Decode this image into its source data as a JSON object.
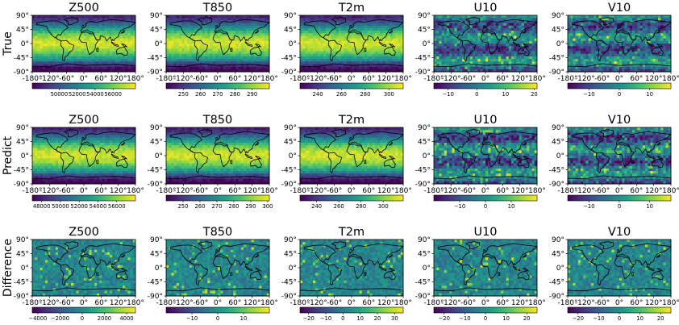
{
  "colormap": [
    "#440154",
    "#46327e",
    "#365c8d",
    "#277f8e",
    "#1fa187",
    "#4ac16d",
    "#a0da39",
    "#fde725"
  ],
  "coast_color": "#000000",
  "chart_data": {
    "type": "heatmap",
    "rows": [
      "True",
      "Predict",
      "Difference"
    ],
    "columns": [
      "Z500",
      "T850",
      "T2m",
      "U10",
      "V10"
    ],
    "lat_ticks": [
      "90°",
      "45°",
      "0°",
      "-45°",
      "-90°"
    ],
    "lon_ticks": [
      "-180°",
      "-120°",
      "-60°",
      "0°",
      "60°",
      "120°",
      "180°"
    ],
    "xlim": [
      -180,
      180
    ],
    "ylim": [
      -90,
      90
    ],
    "panels": [
      {
        "row": "True",
        "variable": "Z500",
        "range": [
          47000,
          58500
        ],
        "colorbar_ticks": [
          {
            "value": 50000,
            "label": "50000"
          },
          {
            "value": 52000,
            "label": "52000"
          },
          {
            "value": 54000,
            "label": "54000"
          },
          {
            "value": 56000,
            "label": "56000"
          }
        ]
      },
      {
        "row": "True",
        "variable": "T850",
        "range": [
          240,
          300
        ],
        "colorbar_ticks": [
          {
            "value": 250,
            "label": "250"
          },
          {
            "value": 260,
            "label": "260"
          },
          {
            "value": 270,
            "label": "270"
          },
          {
            "value": 280,
            "label": "280"
          },
          {
            "value": 290,
            "label": "290"
          }
        ]
      },
      {
        "row": "True",
        "variable": "T2m",
        "range": [
          225,
          312
        ],
        "colorbar_ticks": [
          {
            "value": 240,
            "label": "240"
          },
          {
            "value": 260,
            "label": "260"
          },
          {
            "value": 280,
            "label": "280"
          },
          {
            "value": 300,
            "label": "300"
          }
        ]
      },
      {
        "row": "True",
        "variable": "U10",
        "range": [
          -15,
          21
        ],
        "colorbar_ticks": [
          {
            "value": -10,
            "label": "−10"
          },
          {
            "value": 0,
            "label": "0"
          },
          {
            "value": 10,
            "label": "10"
          },
          {
            "value": 20,
            "label": "20"
          }
        ]
      },
      {
        "row": "True",
        "variable": "V10",
        "range": [
          -17,
          17
        ],
        "colorbar_ticks": [
          {
            "value": -10,
            "label": "−10"
          },
          {
            "value": 0,
            "label": "0"
          },
          {
            "value": 10,
            "label": "10"
          }
        ]
      },
      {
        "row": "Predict",
        "variable": "Z500",
        "range": [
          47000,
          58000
        ],
        "colorbar_ticks": [
          {
            "value": 48000,
            "label": "48000"
          },
          {
            "value": 50000,
            "label": "50000"
          },
          {
            "value": 52000,
            "label": "52000"
          },
          {
            "value": 54000,
            "label": "54000"
          },
          {
            "value": 56000,
            "label": "56000"
          }
        ]
      },
      {
        "row": "Predict",
        "variable": "T850",
        "range": [
          240,
          301
        ],
        "colorbar_ticks": [
          {
            "value": 250,
            "label": "250"
          },
          {
            "value": 260,
            "label": "260"
          },
          {
            "value": 270,
            "label": "270"
          },
          {
            "value": 280,
            "label": "280"
          },
          {
            "value": 290,
            "label": "290"
          },
          {
            "value": 300,
            "label": "300"
          }
        ]
      },
      {
        "row": "Predict",
        "variable": "T2m",
        "range": [
          225,
          318
        ],
        "colorbar_ticks": [
          {
            "value": 240,
            "label": "240"
          },
          {
            "value": 260,
            "label": "260"
          },
          {
            "value": 280,
            "label": "280"
          },
          {
            "value": 300,
            "label": "300"
          }
        ]
      },
      {
        "row": "Predict",
        "variable": "U10",
        "range": [
          -20,
          20
        ],
        "colorbar_ticks": [
          {
            "value": -10,
            "label": "−10"
          },
          {
            "value": 0,
            "label": "0"
          },
          {
            "value": 10,
            "label": "10"
          }
        ]
      },
      {
        "row": "Predict",
        "variable": "V10",
        "range": [
          -17,
          17
        ],
        "colorbar_ticks": [
          {
            "value": -10,
            "label": "−10"
          },
          {
            "value": 0,
            "label": "0"
          },
          {
            "value": 10,
            "label": "10"
          }
        ]
      },
      {
        "row": "Difference",
        "variable": "Z500",
        "range": [
          -4500,
          4800
        ],
        "colorbar_ticks": [
          {
            "value": -4000,
            "label": "−4000"
          },
          {
            "value": -2000,
            "label": "−2000"
          },
          {
            "value": 0,
            "label": "0"
          },
          {
            "value": 2000,
            "label": "2000"
          },
          {
            "value": 4000,
            "label": "4000"
          }
        ]
      },
      {
        "row": "Difference",
        "variable": "T850",
        "range": [
          -20,
          20
        ],
        "colorbar_ticks": [
          {
            "value": -10,
            "label": "−10"
          },
          {
            "value": 0,
            "label": "0"
          },
          {
            "value": 10,
            "label": "10"
          }
        ]
      },
      {
        "row": "Difference",
        "variable": "T2m",
        "range": [
          -25,
          35
        ],
        "colorbar_ticks": [
          {
            "value": -20,
            "label": "−20"
          },
          {
            "value": -10,
            "label": "−10"
          },
          {
            "value": 0,
            "label": "0"
          },
          {
            "value": 10,
            "label": "10"
          },
          {
            "value": 20,
            "label": "20"
          },
          {
            "value": 30,
            "label": "30"
          }
        ]
      },
      {
        "row": "Difference",
        "variable": "U10",
        "range": [
          -25,
          25
        ],
        "colorbar_ticks": [
          {
            "value": -20,
            "label": "−20"
          },
          {
            "value": -10,
            "label": "−10"
          },
          {
            "value": 0,
            "label": "0"
          },
          {
            "value": 10,
            "label": "10"
          },
          {
            "value": 20,
            "label": "20"
          }
        ]
      },
      {
        "row": "Difference",
        "variable": "V10",
        "range": [
          -25,
          25
        ],
        "colorbar_ticks": [
          {
            "value": -20,
            "label": "−20"
          },
          {
            "value": -10,
            "label": "−10"
          },
          {
            "value": 0,
            "label": "0"
          },
          {
            "value": 10,
            "label": "10"
          },
          {
            "value": 20,
            "label": "20"
          }
        ]
      }
    ]
  }
}
